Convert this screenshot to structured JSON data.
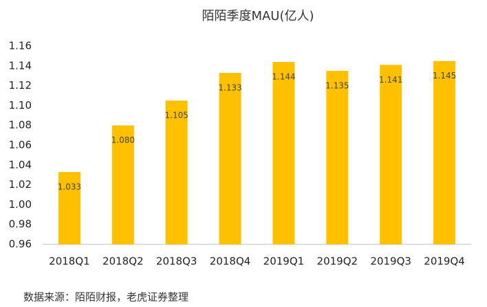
{
  "chart_data": {
    "type": "bar",
    "title": "陌陌季度MAU(亿人)",
    "categories": [
      "2018Q1",
      "2018Q2",
      "2018Q3",
      "2018Q4",
      "2019Q1",
      "2019Q2",
      "2019Q3",
      "2019Q4"
    ],
    "values": [
      1.033,
      1.08,
      1.105,
      1.133,
      1.144,
      1.135,
      1.141,
      1.145
    ],
    "value_labels": [
      "1.033",
      "1.080",
      "1.105",
      "1.133",
      "1.144",
      "1.135",
      "1.141",
      "1.145"
    ],
    "color": "#ffc000",
    "ylim": [
      0.96,
      1.16
    ],
    "yticks": [
      0.96,
      0.98,
      {
        "value": 1,
        "label": "1.00"
      },
      1.02,
      1.04,
      1.06,
      1.08,
      {
        "value": 1.1,
        "label": "1.10"
      },
      1.12,
      1.14,
      1.16
    ],
    "grid": false,
    "source": "数据来源：陌陌财报，老虎证券整理"
  }
}
